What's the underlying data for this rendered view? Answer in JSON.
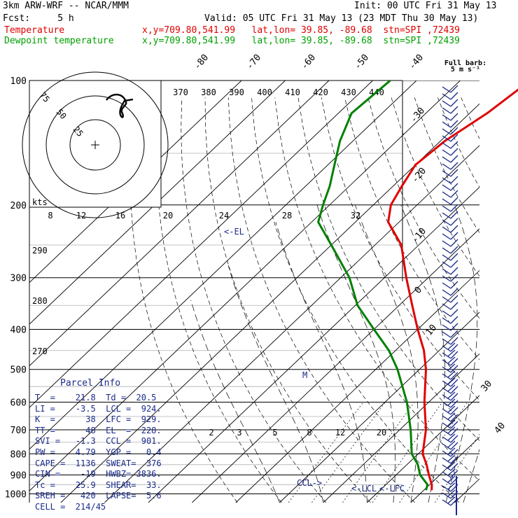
{
  "header": {
    "model": "3km ARW-WRF -- NCAR/MMM",
    "init": "Init: 00 UTC Fri 31 May 13",
    "fcst": "Fcst:     5 h",
    "valid": "Valid: 05 UTC Fri 31 May 13 (23 MDT Thu 30 May 13)",
    "temp_label": "Temperature",
    "temp_info": "x,y=709.80,541.99   lat,lon= 39.85, -89.68  stn=SPI ,72439",
    "dew_label": "Dewpoint temperature",
    "dew_info": "x,y=709.80,541.99   lat,lon= 39.85, -89.68  stn=SPI ,72439"
  },
  "colors": {
    "temperature": "#e00000",
    "dewpoint": "#008000",
    "isobars": "#000000",
    "isotherms": "#000000",
    "mixing_ratio": "#000000",
    "annotations": "#1a2a8a",
    "barbs": "#1a2a8a",
    "gray_lines": "#b0b0b0"
  },
  "barb_label": {
    "line1": "Full barb:",
    "line2": "5 m s⁻¹"
  },
  "parcel": {
    "title": "Parcel Info",
    "rows": [
      "T  =    21.8  Td =  20.5",
      "LI =    -3.5  LCL =  924.",
      "K  =      38  LFC =  929.",
      "TT =      48  EL  =  228.",
      "SVI =   -1.3  CCL =  901.",
      "PW =    4.79  YGP =   0.4",
      "CAPE =  1136  SWEAT=  376",
      "CIN =    -19  HWBZ= 3836.",
      "Tc =    25.9  SHEAR=  33.",
      "SREH =   420  LAPSE=  5.6",
      "CELL =  214/45"
    ]
  },
  "markers": {
    "el": "<-EL",
    "m": "M",
    "ccl": "CCL->",
    "lcl": "<-LCL",
    "lfc": "<-LFC"
  },
  "hodograph": {
    "units_label": "kts",
    "rings": [
      "25",
      "50",
      "75"
    ]
  },
  "chart_data": {
    "type": "skew-t",
    "pressure_levels": [
      100,
      200,
      300,
      400,
      500,
      600,
      700,
      800,
      900,
      1000
    ],
    "isotherm_labels": [
      "-80",
      "-70",
      "-60",
      "-50",
      "-40",
      "-30",
      "-20",
      "-10",
      "0",
      "10",
      "30",
      "40"
    ],
    "theta_labels": [
      "370",
      "380",
      "390",
      "400",
      "410",
      "420",
      "430",
      "440"
    ],
    "theta_side_labels": [
      "290",
      "280",
      "270"
    ],
    "mixing_ratio_top_labels": [
      "8",
      "12",
      "16",
      "20",
      "24",
      "28",
      "32"
    ],
    "mixing_ratio_bottom_labels": [
      "2",
      "3",
      "5",
      "8",
      "12",
      "20"
    ],
    "temperature": {
      "name": "Temperature",
      "p": [
        980,
        950,
        900,
        850,
        800,
        700,
        600,
        500,
        450,
        400,
        350,
        300,
        250,
        220,
        200,
        180,
        160,
        140,
        120,
        100
      ],
      "t": [
        21.8,
        20.5,
        17.5,
        14.5,
        11.0,
        6.0,
        -1.0,
        -8.5,
        -13.5,
        -20.0,
        -27.0,
        -35.0,
        -44.0,
        -52.5,
        -56.0,
        -58.0,
        -60.0,
        -59.0,
        -56.0,
        -54.0
      ]
    },
    "dewpoint": {
      "name": "Dewpoint temperature",
      "p": [
        980,
        950,
        900,
        850,
        800,
        700,
        600,
        500,
        450,
        400,
        350,
        300,
        250,
        220,
        200,
        180,
        160,
        140,
        120,
        100
      ],
      "td": [
        20.5,
        19.5,
        15.5,
        12.5,
        8.5,
        2.5,
        -5.0,
        -15.0,
        -21.5,
        -30.0,
        -39.5,
        -48.0,
        -60.0,
        -68.5,
        -71.5,
        -74.5,
        -78.5,
        -83.0,
        -87.0,
        -86.0
      ]
    }
  }
}
